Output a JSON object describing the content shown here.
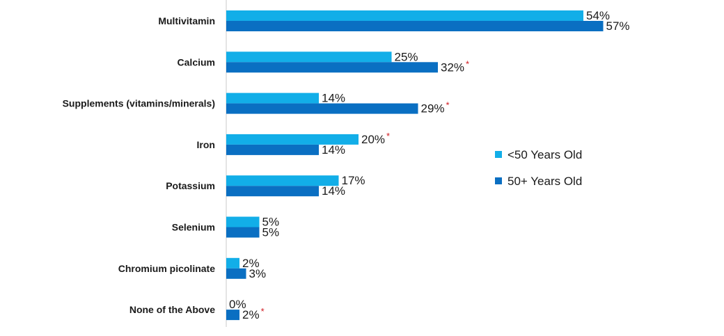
{
  "chart_data": {
    "type": "bar",
    "orientation": "horizontal",
    "categories": [
      "Multivitamin",
      "Calcium",
      "Supplements (vitamins/minerals)",
      "Iron",
      "Potassium",
      "Selenium",
      "Chromium picolinate",
      "None of the Above"
    ],
    "series": [
      {
        "name": "<50 Years Old",
        "color": "#12aee8",
        "values": [
          54,
          25,
          14,
          20,
          17,
          5,
          2,
          0
        ],
        "labels": [
          "54%",
          "25%",
          "14%",
          "20%",
          "17%",
          "5%",
          "2%",
          "0%"
        ],
        "significant": [
          false,
          false,
          false,
          true,
          false,
          false,
          false,
          false
        ]
      },
      {
        "name": "50+ Years Old",
        "color": "#0a6fc2",
        "values": [
          57,
          32,
          29,
          14,
          14,
          5,
          3,
          2
        ],
        "labels": [
          "57%",
          "32%",
          "29%",
          "14%",
          "14%",
          "5%",
          "3%",
          "2%"
        ],
        "significant": [
          false,
          true,
          true,
          false,
          false,
          false,
          false,
          true
        ]
      }
    ],
    "significance_marker": "*",
    "significance_color": "#d0191f",
    "axis_color": "#c8c8c8",
    "xlim": [
      0,
      60
    ],
    "grid": false,
    "legend_position": "right"
  }
}
